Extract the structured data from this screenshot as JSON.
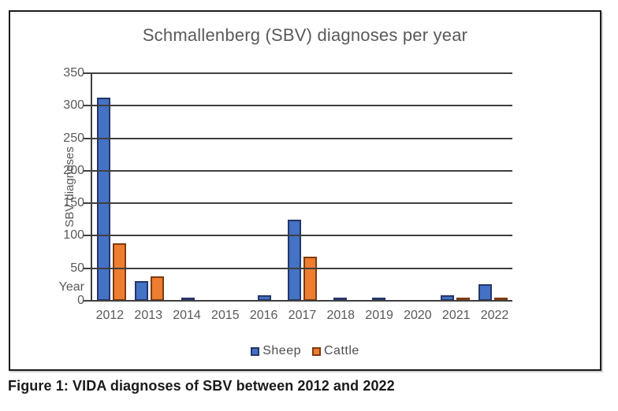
{
  "figure": {
    "caption": "Figure 1: VIDA diagnoses of SBV between 2012 and 2022"
  },
  "chart_data": {
    "type": "bar",
    "title": "Schmallenberg (SBV) diagnoses per year",
    "xlabel": "Year",
    "ylabel": "SBV diagnoses",
    "categories": [
      "2012",
      "2013",
      "2014",
      "2015",
      "2016",
      "2017",
      "2018",
      "2019",
      "2020",
      "2021",
      "2022"
    ],
    "series": [
      {
        "name": "Sheep",
        "color": "#4472C4",
        "border_color": "#24366B",
        "values": [
          312,
          30,
          2,
          0,
          8,
          125,
          3,
          1,
          0,
          8,
          25
        ]
      },
      {
        "name": "Cattle",
        "color": "#ED7D31",
        "border_color": "#7F3B0E",
        "values": [
          89,
          38,
          0,
          0,
          0,
          68,
          0,
          0,
          0,
          4,
          5
        ]
      }
    ],
    "ylim": [
      0,
      350
    ],
    "ytick_step": 50,
    "grid": true,
    "legend_position": "bottom",
    "gridline_color": "#3f3f3f",
    "text_color": "#595959"
  }
}
